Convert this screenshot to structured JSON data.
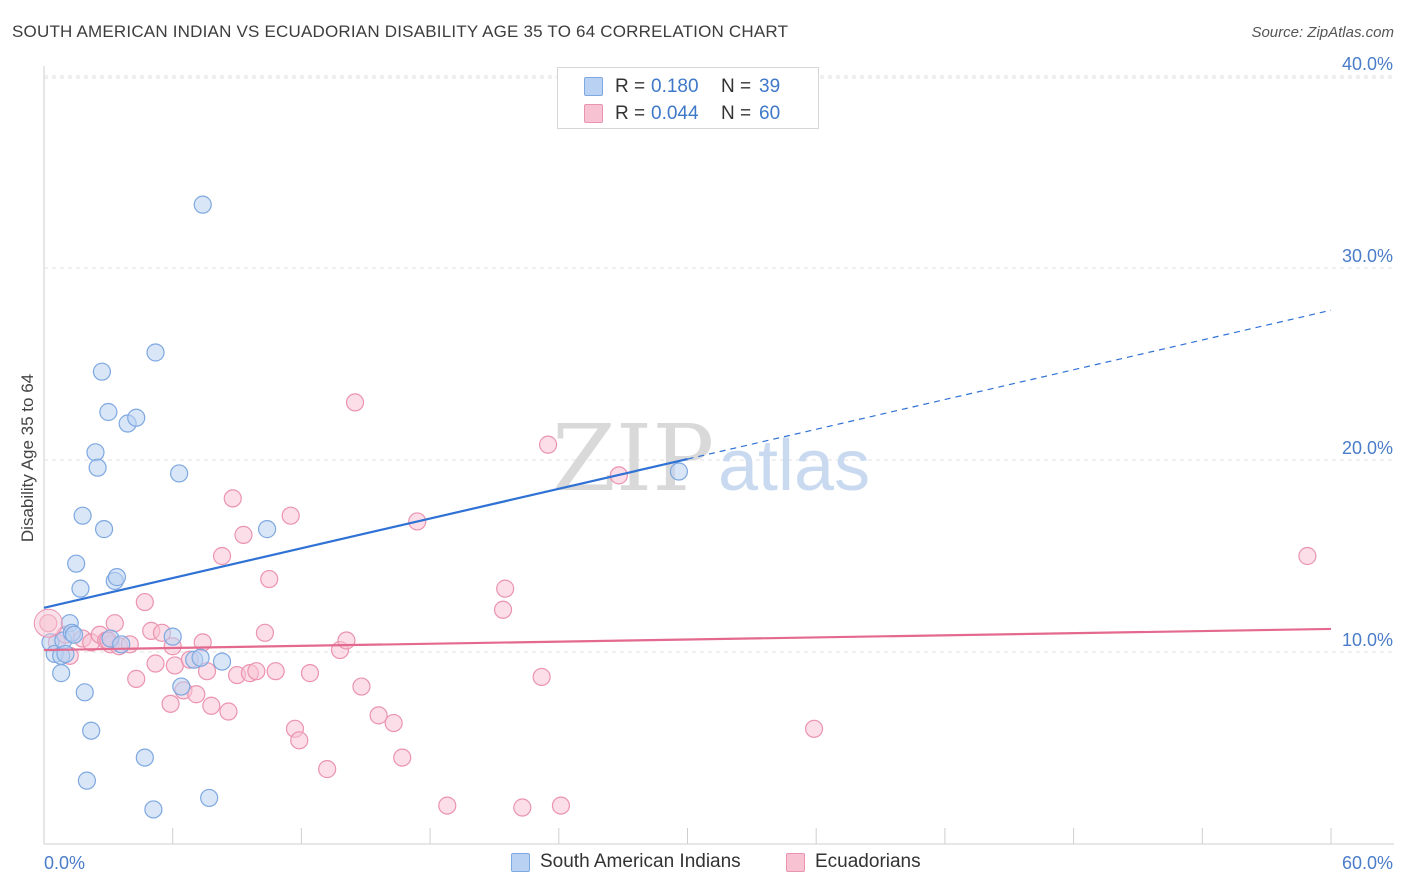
{
  "title": "SOUTH AMERICAN INDIAN VS ECUADORIAN DISABILITY AGE 35 TO 64 CORRELATION CHART",
  "source": "Source: ZipAtlas.com",
  "watermark": {
    "zip": "ZIP",
    "atlas": "atlas"
  },
  "legend": {
    "rows": [
      {
        "r_label": "R =",
        "r_value": "0.180",
        "n_label": "N =",
        "n_value": "39"
      },
      {
        "r_label": "R =",
        "r_value": "0.044",
        "n_label": "N =",
        "n_value": "60"
      }
    ]
  },
  "bottom_legend": {
    "items": [
      {
        "label": "South American Indians"
      },
      {
        "label": "Ecuadorians"
      }
    ]
  },
  "colors": {
    "blue_fill": "#b9d2f3",
    "blue_stroke": "#7ea8e0",
    "blue_line": "#2f72d4",
    "pink_fill": "#f7c3d3",
    "pink_stroke": "#eb93b0",
    "pink_line": "#e4698f",
    "grid": "#e2e2e2",
    "tick_text": "#4a7cc9"
  },
  "chart_data": {
    "type": "scatter",
    "title": "SOUTH AMERICAN INDIAN VS ECUADORIAN DISABILITY AGE 35 TO 64 CORRELATION CHART",
    "xlabel": "",
    "ylabel": "Disability Age 35 to 64",
    "xlim": [
      0,
      60
    ],
    "ylim": [
      0,
      41.5
    ],
    "x_tick_labels": [
      "0.0%",
      "60.0%"
    ],
    "y_ticks": [
      10,
      20,
      30,
      40
    ],
    "y_tick_labels": [
      "10.0%",
      "20.0%",
      "30.0%",
      "40.0%"
    ],
    "series": [
      {
        "name": "South American Indians",
        "r": 0.18,
        "n": 39,
        "trend": {
          "x0": 0,
          "y0": 12.3,
          "x1": 60,
          "y1": 27.8,
          "solid_until": 30
        },
        "points": [
          [
            0.3,
            10.5
          ],
          [
            0.5,
            9.9
          ],
          [
            0.8,
            9.8
          ],
          [
            0.9,
            10.6
          ],
          [
            1.0,
            9.9
          ],
          [
            1.2,
            11.5
          ],
          [
            1.3,
            11.0
          ],
          [
            1.4,
            10.9
          ],
          [
            1.5,
            14.6
          ],
          [
            1.7,
            13.3
          ],
          [
            1.8,
            17.1
          ],
          [
            1.9,
            7.9
          ],
          [
            2.0,
            3.3
          ],
          [
            2.2,
            5.9
          ],
          [
            2.4,
            20.4
          ],
          [
            2.5,
            19.6
          ],
          [
            2.7,
            24.6
          ],
          [
            2.8,
            16.4
          ],
          [
            3.0,
            22.5
          ],
          [
            3.1,
            10.7
          ],
          [
            3.3,
            13.7
          ],
          [
            3.4,
            13.9
          ],
          [
            3.6,
            10.4
          ],
          [
            3.9,
            21.9
          ],
          [
            4.3,
            22.2
          ],
          [
            4.7,
            4.5
          ],
          [
            5.1,
            1.8
          ],
          [
            5.2,
            25.6
          ],
          [
            6.0,
            10.8
          ],
          [
            6.3,
            19.3
          ],
          [
            6.4,
            8.2
          ],
          [
            7.0,
            9.6
          ],
          [
            7.3,
            9.7
          ],
          [
            7.4,
            33.3
          ],
          [
            7.7,
            2.4
          ],
          [
            8.3,
            9.5
          ],
          [
            10.4,
            16.4
          ],
          [
            29.6,
            19.4
          ],
          [
            0.8,
            8.9
          ]
        ]
      },
      {
        "name": "Ecuadorians",
        "r": 0.044,
        "n": 60,
        "trend": {
          "x0": 0,
          "y0": 10.1,
          "x1": 60,
          "y1": 11.2
        },
        "points": [
          [
            0.2,
            11.5
          ],
          [
            0.6,
            10.5
          ],
          [
            1.0,
            10.9
          ],
          [
            1.2,
            9.8
          ],
          [
            1.8,
            10.7
          ],
          [
            2.2,
            10.5
          ],
          [
            2.6,
            10.9
          ],
          [
            2.9,
            10.6
          ],
          [
            3.1,
            10.4
          ],
          [
            3.3,
            11.5
          ],
          [
            3.5,
            10.3
          ],
          [
            4.0,
            10.4
          ],
          [
            4.3,
            8.6
          ],
          [
            4.7,
            12.6
          ],
          [
            5.0,
            11.1
          ],
          [
            5.2,
            9.4
          ],
          [
            5.5,
            11.0
          ],
          [
            5.9,
            7.3
          ],
          [
            6.1,
            9.3
          ],
          [
            6.5,
            8.0
          ],
          [
            6.8,
            9.6
          ],
          [
            7.1,
            7.8
          ],
          [
            7.4,
            10.5
          ],
          [
            7.6,
            9.0
          ],
          [
            7.8,
            7.2
          ],
          [
            8.3,
            15.0
          ],
          [
            8.6,
            6.9
          ],
          [
            8.8,
            18.0
          ],
          [
            9.0,
            8.8
          ],
          [
            9.3,
            16.1
          ],
          [
            9.6,
            8.9
          ],
          [
            9.9,
            9.0
          ],
          [
            10.3,
            11.0
          ],
          [
            10.5,
            13.8
          ],
          [
            10.8,
            9.0
          ],
          [
            11.5,
            17.1
          ],
          [
            11.7,
            6.0
          ],
          [
            11.9,
            5.4
          ],
          [
            12.4,
            8.9
          ],
          [
            13.2,
            3.9
          ],
          [
            13.8,
            10.1
          ],
          [
            14.1,
            10.6
          ],
          [
            14.5,
            23.0
          ],
          [
            14.8,
            8.2
          ],
          [
            15.6,
            6.7
          ],
          [
            16.3,
            6.3
          ],
          [
            16.7,
            4.5
          ],
          [
            17.4,
            16.8
          ],
          [
            18.8,
            2.0
          ],
          [
            21.5,
            13.3
          ],
          [
            21.4,
            12.2
          ],
          [
            22.3,
            1.9
          ],
          [
            23.2,
            8.7
          ],
          [
            23.5,
            20.8
          ],
          [
            24.1,
            2.0
          ],
          [
            26.8,
            19.2
          ],
          [
            35.9,
            6.0
          ],
          [
            58.9,
            15.0
          ],
          [
            3.0,
            10.6
          ],
          [
            6.0,
            10.3
          ]
        ]
      }
    ]
  }
}
